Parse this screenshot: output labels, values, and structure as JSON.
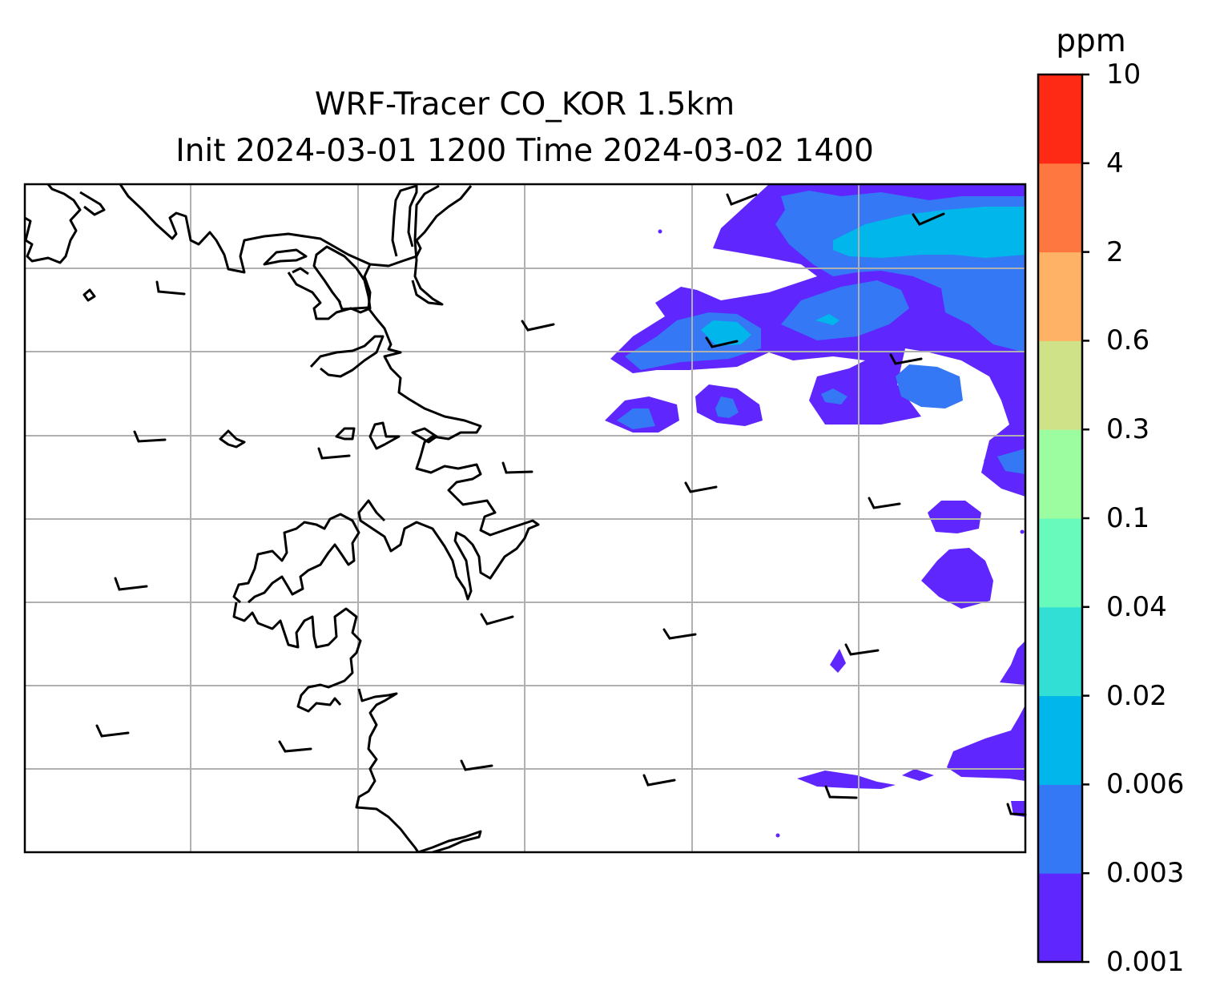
{
  "title": {
    "line1": "WRF-Tracer CO_KOR 1.5km",
    "line2": "Init 2024-03-01 1200 Time 2024-03-02 1400"
  },
  "colorbar": {
    "unit": "ppm",
    "levels": [
      "0.001",
      "0.003",
      "0.006",
      "0.02",
      "0.04",
      "0.1",
      "0.3",
      "0.6",
      "2",
      "4",
      "10"
    ],
    "colors": [
      "#5f26fd",
      "#3478f6",
      "#01b6ea",
      "#32dfd4",
      "#68fabc",
      "#9bfca0",
      "#cfe288",
      "#feb265",
      "#fe7640",
      "#fe2a16"
    ]
  },
  "map": {
    "gridlines": true,
    "frame_color": "#000000",
    "coastline_color": "#000000",
    "wind_barbs": "northwesterly winds shown as barbs across the domain"
  }
}
